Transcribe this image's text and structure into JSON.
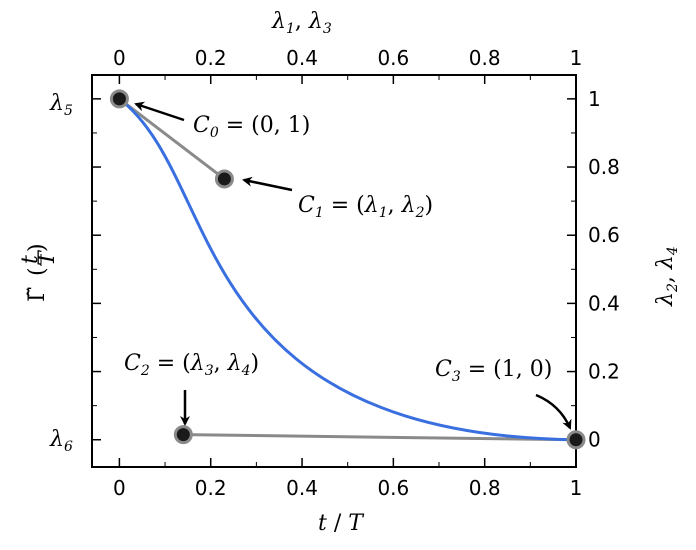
{
  "chart_data": {
    "type": "line",
    "xlabel": "t / T",
    "ylabel": "Γ̃(t/T)",
    "top_axis_label": "λ1, λ3",
    "right_axis_label": "λ2, λ4",
    "left_tick_labels": [
      "λ5",
      "λ6"
    ],
    "xlim": [
      -0.06,
      1.0
    ],
    "ylim": [
      -0.08,
      1.07
    ],
    "x_ticks": [
      0,
      0.2,
      0.4,
      0.6,
      0.8,
      1
    ],
    "x_tick_labels": [
      "0",
      "0.2",
      "0.4",
      "0.6",
      "0.8",
      "1"
    ],
    "y_ticks": [
      0,
      0.2,
      0.4,
      0.6,
      0.8,
      1
    ],
    "y_tick_labels": [
      "0",
      "0.2",
      "0.4",
      "0.6",
      "0.8",
      "1"
    ],
    "curve_color": "#3a6fe0",
    "polygon_color": "#8a8a8a",
    "control_points": [
      {
        "label": "C0 = (0, 1)",
        "x": 0.0,
        "y": 1.0
      },
      {
        "label": "C1 = (λ1, λ2)",
        "x": 0.23,
        "y": 0.765
      },
      {
        "label": "C2 = (λ3, λ4)",
        "x": 0.14,
        "y": 0.015
      },
      {
        "label": "C3 = (1, 0)",
        "x": 1.0,
        "y": 0.0
      }
    ]
  }
}
